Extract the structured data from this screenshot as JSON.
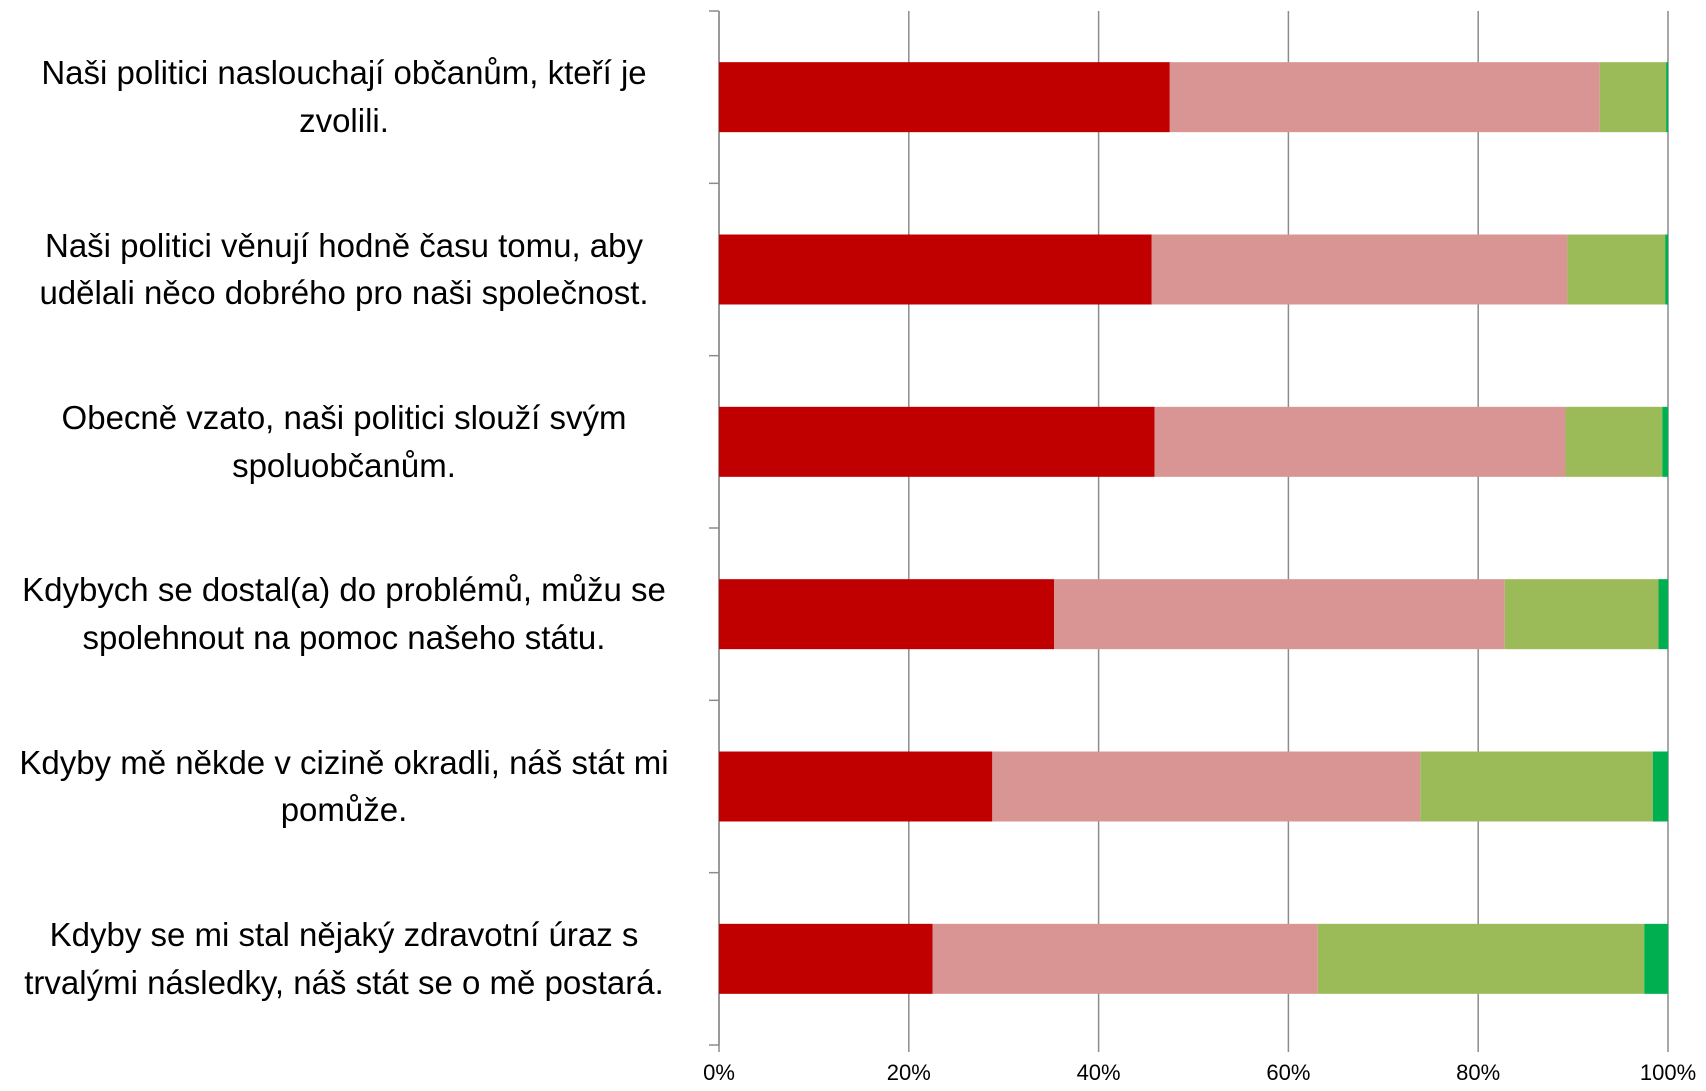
{
  "chart_data": {
    "type": "stacked-barh",
    "categories": [
      "Naši politici naslouchají občanům, kteří je zvolili.",
      "Naši politici věnují hodně času tomu, aby udělali něco dobrého pro naši společnost.",
      "Obecně vzato, naši politici slouží svým spoluobčanům.",
      "Kdybych se dostal(a) do problémů, můžu se spolehnout na pomoc našeho státu.",
      "Kdyby mě někde v cizině okradli, náš stát mi pomůže.",
      "Kdyby se mi stal nějaký zdravotní úraz s trvalými následky, náš stát se o mě postará."
    ],
    "series": [
      {
        "color": "#c00000",
        "values": [
          47.5,
          45.6,
          45.9,
          35.3,
          28.8,
          22.5
        ]
      },
      {
        "color": "#d99594",
        "values": [
          45.3,
          43.8,
          43.3,
          47.5,
          45.1,
          40.6
        ]
      },
      {
        "color": "#9bbb59",
        "values": [
          7.0,
          10.3,
          10.2,
          16.2,
          24.5,
          34.4
        ]
      },
      {
        "color": "#00b050",
        "values": [
          0.2,
          0.3,
          0.6,
          1.0,
          1.6,
          2.5
        ]
      }
    ],
    "xlim": [
      0,
      100
    ],
    "xticks": [
      {
        "value": 0,
        "label": "0%"
      },
      {
        "value": 20,
        "label": "20%"
      },
      {
        "value": 40,
        "label": "40%"
      },
      {
        "value": 60,
        "label": "60%"
      },
      {
        "value": 80,
        "label": "80%"
      },
      {
        "value": 100,
        "label": "100%"
      }
    ],
    "grid": true
  }
}
